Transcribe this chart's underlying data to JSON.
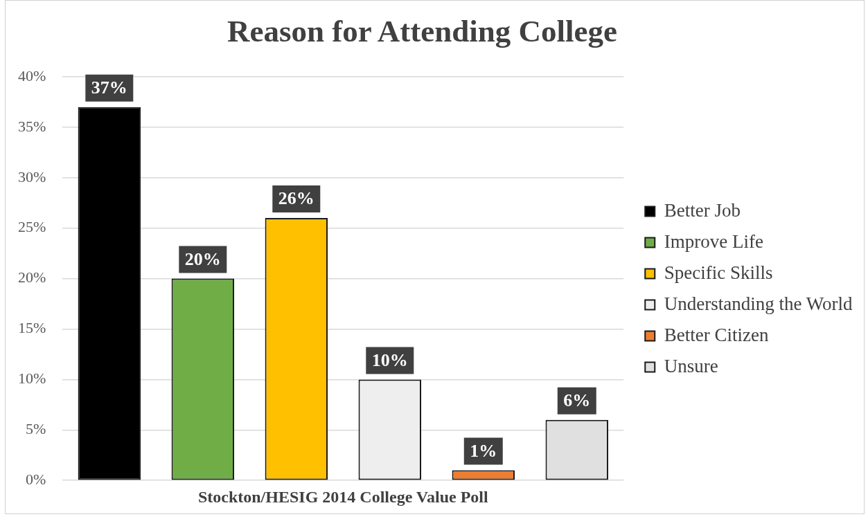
{
  "chart_data": {
    "type": "bar",
    "title": "Reason for Attending College",
    "xlabel": "Stockton/HESIG 2014 College Value Poll",
    "categories": [
      null
    ],
    "series": [
      {
        "name": "Better Job",
        "color": "#000000",
        "values": [
          37
        ],
        "value_labels": [
          "37%"
        ]
      },
      {
        "name": "Improve Life",
        "color": "#70ad47",
        "values": [
          20
        ],
        "value_labels": [
          "20%"
        ]
      },
      {
        "name": "Specific Skills",
        "color": "#ffc000",
        "values": [
          26
        ],
        "value_labels": [
          "26%"
        ]
      },
      {
        "name": "Understanding the World",
        "color": "#eeeeee",
        "values": [
          10
        ],
        "value_labels": [
          "10%"
        ]
      },
      {
        "name": "Better Citizen",
        "color": "#ed7d31",
        "values": [
          1
        ],
        "value_labels": [
          "1%"
        ]
      },
      {
        "name": "Unsure",
        "color": "#e0e0e0",
        "values": [
          6
        ],
        "value_labels": [
          "6%"
        ]
      }
    ],
    "ylim": [
      0,
      40
    ],
    "yticks": [
      {
        "value": 0,
        "label": "0%"
      },
      {
        "value": 5,
        "label": "5%"
      },
      {
        "value": 10,
        "label": "10%"
      },
      {
        "value": 15,
        "label": "15%"
      },
      {
        "value": 20,
        "label": "20%"
      },
      {
        "value": 25,
        "label": "25%"
      },
      {
        "value": 30,
        "label": "30%"
      },
      {
        "value": 35,
        "label": "35%"
      },
      {
        "value": 40,
        "label": "40%"
      }
    ],
    "grid": "y",
    "legend": "right"
  }
}
